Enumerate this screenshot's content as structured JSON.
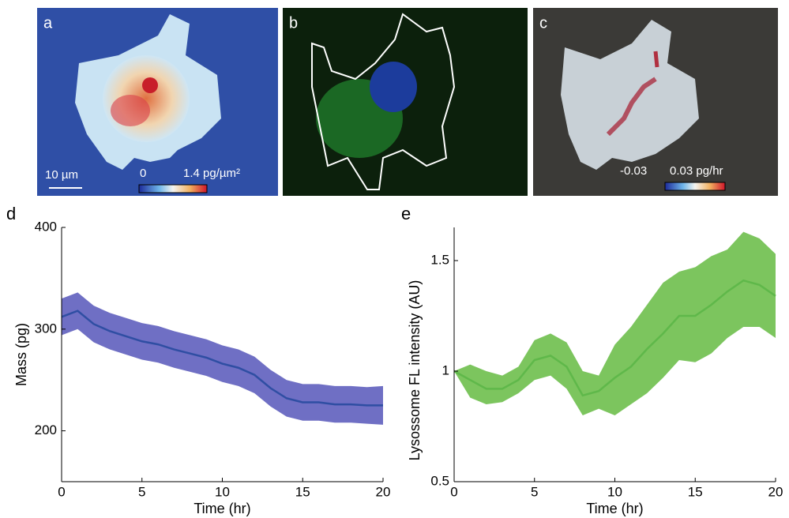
{
  "panels": [
    {
      "label": "a",
      "scale_bar": "10 µm",
      "colorbar_min": "0",
      "colorbar_max": "1.4 pg/µm²"
    },
    {
      "label": "b"
    },
    {
      "label": "c",
      "colorbar_min": "-0.03",
      "colorbar_max": "0.03 pg/hr"
    }
  ],
  "chart_data": [
    {
      "type": "line",
      "panel_label": "d",
      "x_label": "Time (hr)",
      "y_label": "Mass (pg)",
      "x": [
        0,
        1,
        2,
        3,
        4,
        5,
        6,
        7,
        8,
        9,
        10,
        11,
        12,
        13,
        14,
        15,
        16,
        17,
        18,
        19,
        20
      ],
      "series": [
        {
          "color": "#2f4ea3",
          "band_color": "#6f6fc4",
          "values": [
            312,
            318,
            305,
            298,
            293,
            288,
            285,
            280,
            276,
            272,
            266,
            262,
            255,
            242,
            232,
            228,
            228,
            226,
            226,
            225,
            225
          ],
          "upper": [
            330,
            336,
            323,
            316,
            311,
            306,
            303,
            298,
            294,
            290,
            284,
            280,
            273,
            260,
            250,
            246,
            246,
            244,
            244,
            243,
            244
          ],
          "lower": [
            294,
            300,
            287,
            280,
            275,
            270,
            267,
            262,
            258,
            254,
            248,
            244,
            237,
            224,
            214,
            210,
            210,
            208,
            208,
            207,
            206
          ]
        }
      ],
      "xlim": [
        0,
        20
      ],
      "xticks": [
        0,
        5,
        10,
        15,
        20
      ],
      "ylim": [
        150,
        400
      ],
      "yticks": [
        200,
        300,
        400
      ]
    },
    {
      "type": "line",
      "panel_label": "e",
      "x_label": "Time (hr)",
      "y_label": "Lysossome FL intensity (AU)",
      "x": [
        0,
        1,
        2,
        3,
        4,
        5,
        6,
        7,
        8,
        9,
        10,
        11,
        12,
        13,
        14,
        15,
        16,
        17,
        18,
        19,
        20
      ],
      "series": [
        {
          "color": "#5fb84a",
          "band_color": "#7cc55e",
          "values": [
            1.0,
            0.96,
            0.92,
            0.92,
            0.96,
            1.05,
            1.07,
            1.02,
            0.89,
            0.91,
            0.97,
            1.02,
            1.1,
            1.17,
            1.25,
            1.25,
            1.3,
            1.36,
            1.41,
            1.39,
            1.34
          ],
          "upper": [
            1.0,
            1.03,
            1.0,
            0.98,
            1.02,
            1.14,
            1.17,
            1.13,
            1.0,
            0.98,
            1.12,
            1.2,
            1.3,
            1.4,
            1.45,
            1.47,
            1.52,
            1.55,
            1.63,
            1.6,
            1.53
          ],
          "lower": [
            1.0,
            0.88,
            0.85,
            0.86,
            0.9,
            0.96,
            0.98,
            0.92,
            0.8,
            0.83,
            0.8,
            0.85,
            0.9,
            0.97,
            1.05,
            1.04,
            1.08,
            1.15,
            1.2,
            1.2,
            1.15
          ]
        }
      ],
      "xlim": [
        0,
        20
      ],
      "xticks": [
        0,
        5,
        10,
        15,
        20
      ],
      "ylim": [
        0.5,
        1.65
      ],
      "yticks": [
        0.5,
        1,
        1.5
      ]
    }
  ]
}
